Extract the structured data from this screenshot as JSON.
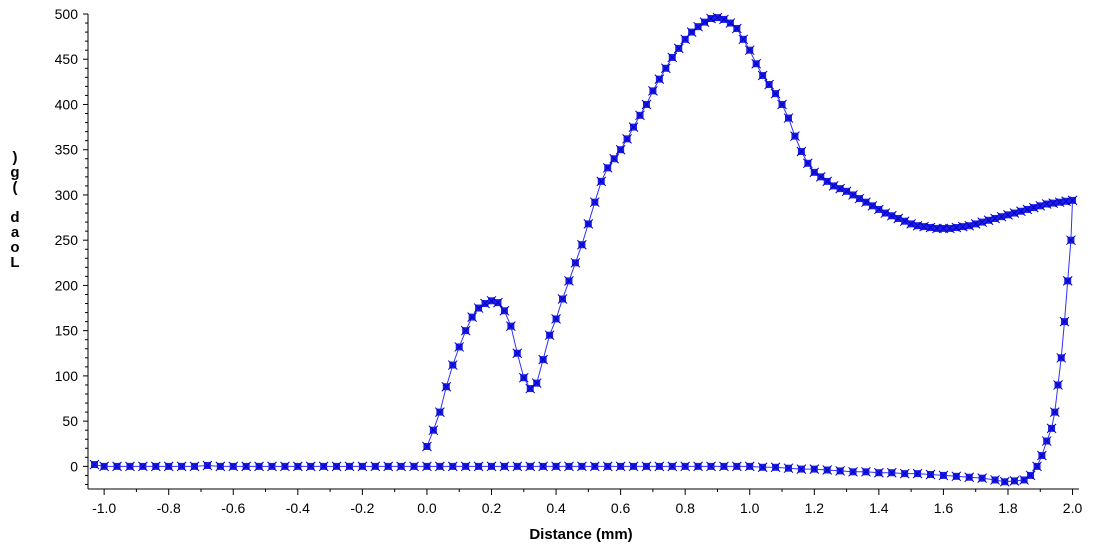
{
  "chart_data": {
    "type": "scatter",
    "xlabel": "Distance (mm)",
    "ylabel": "Load (g)",
    "xlim": [
      -1.05,
      2.02
    ],
    "ylim": [
      -25,
      500
    ],
    "x_ticks": [
      -1.0,
      -0.8,
      -0.6,
      -0.4,
      -0.2,
      0.0,
      0.2,
      0.4,
      0.6,
      0.8,
      1.0,
      1.2,
      1.4,
      1.6,
      1.8,
      2.0
    ],
    "x_tick_labels": [
      "-1.0",
      "-0.8",
      "-0.6",
      "-0.4",
      "-0.2",
      "0.0",
      "0.2",
      "0.4",
      "0.6",
      "0.8",
      "1.0",
      "1.2",
      "1.4",
      "1.6",
      "1.8",
      "2.0"
    ],
    "y_ticks": [
      0,
      50,
      100,
      150,
      200,
      250,
      300,
      350,
      400,
      450,
      500
    ],
    "y_tick_labels": [
      "0",
      "50",
      "100",
      "150",
      "200",
      "250",
      "300",
      "350",
      "400",
      "450",
      "500"
    ],
    "grid": false,
    "legend": "none",
    "marker_color": "#1f1fe6",
    "line_color": "#3030ff",
    "series": [
      {
        "name": "",
        "style": "line+markers",
        "points": [
          [
            0.0,
            22
          ],
          [
            0.02,
            40
          ],
          [
            0.04,
            60
          ],
          [
            0.06,
            88
          ],
          [
            0.08,
            112
          ],
          [
            0.1,
            132
          ],
          [
            0.12,
            150
          ],
          [
            0.14,
            165
          ],
          [
            0.16,
            175
          ],
          [
            0.18,
            180
          ],
          [
            0.2,
            183
          ],
          [
            0.22,
            181
          ],
          [
            0.24,
            172
          ],
          [
            0.26,
            155
          ],
          [
            0.28,
            125
          ],
          [
            0.3,
            98
          ],
          [
            0.32,
            86
          ],
          [
            0.34,
            92
          ],
          [
            0.36,
            118
          ],
          [
            0.38,
            145
          ],
          [
            0.4,
            163
          ],
          [
            0.42,
            185
          ],
          [
            0.44,
            205
          ],
          [
            0.46,
            225
          ],
          [
            0.48,
            245
          ],
          [
            0.5,
            268
          ],
          [
            0.52,
            292
          ],
          [
            0.54,
            315
          ],
          [
            0.56,
            330
          ],
          [
            0.58,
            340
          ],
          [
            0.6,
            350
          ],
          [
            0.62,
            362
          ],
          [
            0.64,
            375
          ],
          [
            0.66,
            388
          ],
          [
            0.68,
            400
          ],
          [
            0.7,
            415
          ],
          [
            0.72,
            428
          ],
          [
            0.74,
            440
          ],
          [
            0.76,
            452
          ],
          [
            0.78,
            462
          ],
          [
            0.8,
            472
          ],
          [
            0.82,
            480
          ],
          [
            0.84,
            486
          ],
          [
            0.86,
            491
          ],
          [
            0.88,
            495
          ],
          [
            0.9,
            496
          ],
          [
            0.92,
            494
          ],
          [
            0.94,
            490
          ],
          [
            0.96,
            484
          ],
          [
            0.98,
            472
          ],
          [
            1.0,
            460
          ],
          [
            1.02,
            445
          ],
          [
            1.04,
            432
          ],
          [
            1.06,
            422
          ],
          [
            1.08,
            412
          ],
          [
            1.1,
            400
          ],
          [
            1.12,
            385
          ],
          [
            1.14,
            365
          ],
          [
            1.16,
            348
          ],
          [
            1.18,
            335
          ],
          [
            1.2,
            325
          ],
          [
            1.22,
            320
          ],
          [
            1.24,
            315
          ],
          [
            1.26,
            310
          ],
          [
            1.28,
            307
          ],
          [
            1.3,
            304
          ],
          [
            1.32,
            300
          ],
          [
            1.34,
            296
          ],
          [
            1.36,
            292
          ],
          [
            1.38,
            288
          ],
          [
            1.4,
            284
          ],
          [
            1.42,
            280
          ],
          [
            1.44,
            277
          ],
          [
            1.46,
            274
          ],
          [
            1.48,
            271
          ],
          [
            1.5,
            268
          ],
          [
            1.52,
            266
          ],
          [
            1.54,
            265
          ],
          [
            1.56,
            264
          ],
          [
            1.58,
            263
          ],
          [
            1.6,
            263
          ],
          [
            1.62,
            263
          ],
          [
            1.64,
            264
          ],
          [
            1.66,
            265
          ],
          [
            1.68,
            266
          ],
          [
            1.7,
            268
          ],
          [
            1.72,
            270
          ],
          [
            1.74,
            272
          ],
          [
            1.76,
            274
          ],
          [
            1.78,
            276
          ],
          [
            1.8,
            278
          ],
          [
            1.82,
            280
          ],
          [
            1.84,
            282
          ],
          [
            1.86,
            284
          ],
          [
            1.88,
            286
          ],
          [
            1.9,
            288
          ],
          [
            1.92,
            290
          ],
          [
            1.94,
            291
          ],
          [
            1.96,
            292
          ],
          [
            1.98,
            293
          ],
          [
            2.0,
            294
          ],
          [
            1.995,
            250
          ],
          [
            1.985,
            205
          ],
          [
            1.975,
            160
          ],
          [
            1.965,
            120
          ],
          [
            1.955,
            90
          ],
          [
            1.945,
            60
          ],
          [
            1.935,
            42
          ],
          [
            1.92,
            28
          ],
          [
            1.905,
            12
          ],
          [
            1.89,
            0
          ],
          [
            1.87,
            -10
          ],
          [
            1.85,
            -15
          ],
          [
            1.82,
            -16
          ],
          [
            1.79,
            -17
          ],
          [
            1.76,
            -15
          ],
          [
            1.72,
            -13
          ],
          [
            1.68,
            -12
          ],
          [
            1.64,
            -11
          ],
          [
            1.6,
            -10
          ],
          [
            1.56,
            -9
          ],
          [
            1.52,
            -8
          ],
          [
            1.48,
            -8
          ],
          [
            1.44,
            -7
          ],
          [
            1.4,
            -7
          ],
          [
            1.36,
            -6
          ],
          [
            1.32,
            -6
          ],
          [
            1.28,
            -5
          ],
          [
            1.24,
            -4
          ],
          [
            1.2,
            -3
          ],
          [
            1.16,
            -3
          ],
          [
            1.12,
            -2
          ],
          [
            1.08,
            -1
          ],
          [
            1.04,
            -1
          ],
          [
            1.0,
            0
          ],
          [
            0.96,
            0
          ],
          [
            0.92,
            0
          ],
          [
            0.88,
            0
          ],
          [
            0.84,
            0
          ],
          [
            0.8,
            0
          ],
          [
            0.76,
            0
          ],
          [
            0.72,
            0
          ],
          [
            0.68,
            0
          ],
          [
            0.64,
            0
          ],
          [
            0.6,
            0
          ],
          [
            0.56,
            0
          ],
          [
            0.52,
            0
          ],
          [
            0.48,
            0
          ],
          [
            0.44,
            0
          ],
          [
            0.4,
            0
          ],
          [
            0.36,
            0
          ],
          [
            0.32,
            0
          ],
          [
            0.28,
            0
          ],
          [
            0.24,
            0
          ],
          [
            0.2,
            0
          ],
          [
            0.16,
            0
          ],
          [
            0.12,
            0
          ],
          [
            0.08,
            0
          ],
          [
            0.04,
            0
          ],
          [
            0.0,
            0
          ],
          [
            -0.04,
            0
          ],
          [
            -0.08,
            0
          ],
          [
            -0.12,
            0
          ],
          [
            -0.16,
            0
          ],
          [
            -0.2,
            0
          ],
          [
            -0.24,
            0
          ],
          [
            -0.28,
            0
          ],
          [
            -0.32,
            0
          ],
          [
            -0.36,
            0
          ],
          [
            -0.4,
            0
          ],
          [
            -0.44,
            0
          ],
          [
            -0.48,
            0
          ],
          [
            -0.52,
            0
          ],
          [
            -0.56,
            0
          ],
          [
            -0.6,
            0
          ],
          [
            -0.64,
            0
          ],
          [
            -0.68,
            1
          ],
          [
            -0.72,
            0
          ],
          [
            -0.76,
            0
          ],
          [
            -0.8,
            0
          ],
          [
            -0.84,
            0
          ],
          [
            -0.88,
            0
          ],
          [
            -0.92,
            0
          ],
          [
            -0.96,
            0
          ],
          [
            -1.0,
            0
          ],
          [
            -1.03,
            2
          ]
        ]
      }
    ]
  }
}
